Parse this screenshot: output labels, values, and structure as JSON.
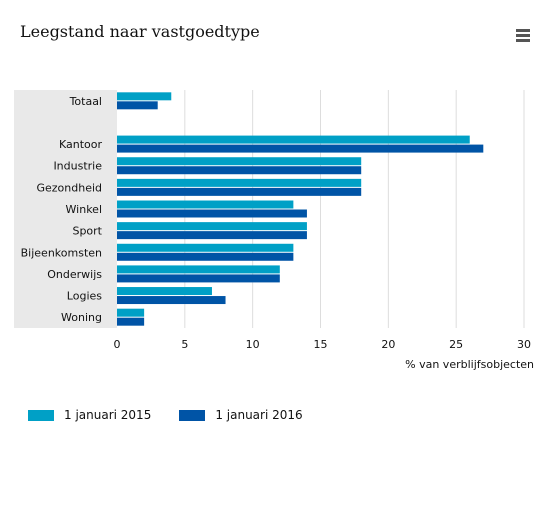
{
  "header": {
    "title": "Leegstand naar vastgoedtype",
    "menu_icon": "hamburger-menu-icon"
  },
  "colors": {
    "series_2015": "#00a0c6",
    "series_2016": "#0054a6",
    "category_band": "#e9e9e9",
    "gridline": "#dddddd"
  },
  "chart_data": {
    "type": "bar",
    "orientation": "horizontal",
    "title": "Leegstand naar vastgoedtype",
    "categories": [
      "Totaal",
      "",
      "Kantoor",
      "Industrie",
      "Gezondheid",
      "Winkel",
      "Sport",
      "Bijeenkomsten",
      "Onderwijs",
      "Logies",
      "Woning"
    ],
    "series": [
      {
        "name": "1 januari 2015",
        "values": [
          4,
          null,
          26,
          18,
          18,
          13,
          14,
          13,
          12,
          7,
          2
        ]
      },
      {
        "name": "1 januari 2016",
        "values": [
          3,
          null,
          27,
          18,
          18,
          14,
          14,
          13,
          12,
          8,
          2
        ]
      }
    ],
    "xlabel": "% van verblijfsobjecten",
    "ylabel": "",
    "xlim": [
      0,
      30
    ],
    "xticks": [
      "0",
      "5",
      "10",
      "15",
      "20",
      "25",
      "30"
    ],
    "grid": true,
    "legend": "bottom-left"
  }
}
